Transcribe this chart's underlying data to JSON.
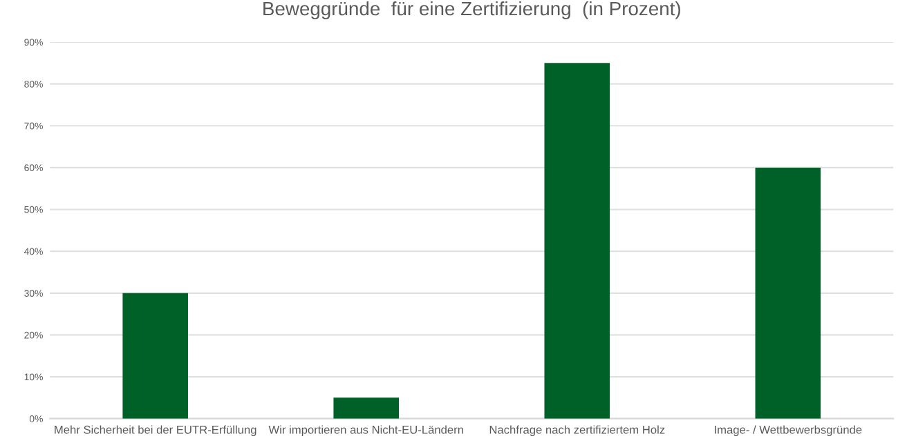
{
  "chart_data": {
    "type": "bar",
    "title": "Beweggründe  für eine Zertifizierung  (in Prozent)",
    "categories": [
      "Mehr Sicherheit bei der EUTR-Erfüllung",
      "Wir importieren aus Nicht-EU-Ländern",
      "Nachfrage nach zertifiziertem Holz",
      "Image- / Wettbewerbsgründe"
    ],
    "values": [
      30,
      5,
      85,
      60
    ],
    "color": "#006128",
    "ylim": [
      0,
      90
    ],
    "yticks": [
      {
        "value": 0,
        "label": "0%"
      },
      {
        "value": 10,
        "label": "10%"
      },
      {
        "value": 20,
        "label": "20%"
      },
      {
        "value": 30,
        "label": "30%"
      },
      {
        "value": 40,
        "label": "40%"
      },
      {
        "value": 50,
        "label": "50%"
      },
      {
        "value": 60,
        "label": "60%"
      },
      {
        "value": 70,
        "label": "70%"
      },
      {
        "value": 80,
        "label": "80%"
      },
      {
        "value": 90,
        "label": "90%"
      }
    ],
    "grid": "y"
  }
}
